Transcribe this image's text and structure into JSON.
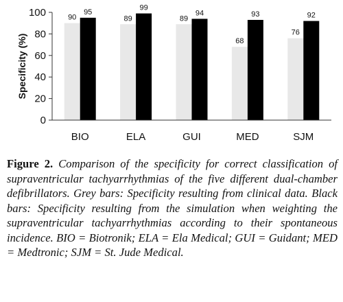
{
  "chart_data": {
    "type": "bar",
    "categories": [
      "BIO",
      "ELA",
      "GUI",
      "MED",
      "SJM"
    ],
    "series": [
      {
        "name": "Grey bars",
        "values": [
          90,
          89,
          89,
          68,
          76
        ],
        "color": "#e8e8e8"
      },
      {
        "name": "Black bars",
        "values": [
          95,
          99,
          94,
          93,
          92
        ],
        "color": "#000000"
      }
    ],
    "data_labels": [
      [
        "90",
        "89",
        "89",
        "68",
        "76"
      ],
      [
        "95",
        "99",
        "94",
        "93",
        "92"
      ]
    ],
    "title": "",
    "xlabel": "",
    "ylabel": "Specificity (%)",
    "ylim": [
      0,
      100
    ],
    "yticks": [
      0,
      20,
      40,
      60,
      80,
      100
    ],
    "grid": false,
    "legend": "none"
  },
  "caption": {
    "label": "Figure 2.",
    "text": "Comparison of the specificity for correct classification of supraventricular tachyarrhythmias of the five different dual-chamber defibrillators. Grey bars: Specificity resulting from clinical data. Black bars: Specificity resulting from the simulation when weighting the supraventricular tachyarrhythmias according to their spontaneous incidence. BIO = Biotronik; ELA = Ela Medical; GUI = Guidant; MED = Medtronic; SJM = St. Jude Medical."
  }
}
